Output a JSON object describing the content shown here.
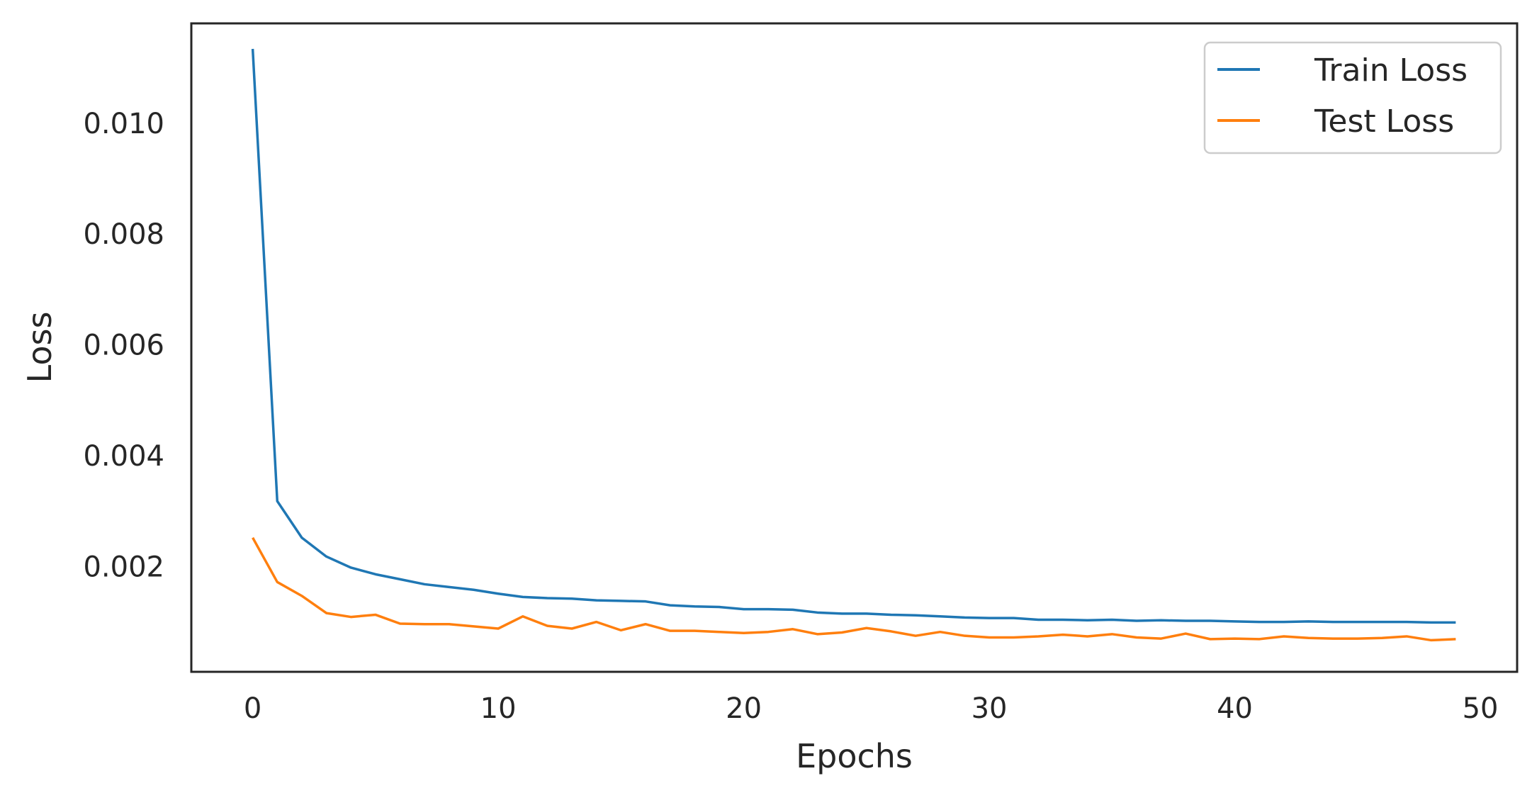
{
  "chart_data": {
    "type": "line",
    "title": "",
    "xlabel": "Epochs",
    "ylabel": "Loss",
    "xlim": [
      -2.5,
      51.5
    ],
    "ylim": [
      0.0001,
      0.0118
    ],
    "x_ticks": [
      0,
      10,
      20,
      30,
      40,
      50
    ],
    "x_tick_labels": [
      "0",
      "10",
      "20",
      "30",
      "40",
      "50"
    ],
    "y_ticks": [
      0.002,
      0.004,
      0.006,
      0.008,
      0.01
    ],
    "y_tick_labels": [
      "0.002",
      "0.004",
      "0.006",
      "0.008",
      "0.010"
    ],
    "grid": false,
    "legend_position": "top-right",
    "x": [
      0,
      1,
      2,
      3,
      4,
      5,
      6,
      7,
      8,
      9,
      10,
      11,
      12,
      13,
      14,
      15,
      16,
      17,
      18,
      19,
      20,
      21,
      22,
      23,
      24,
      25,
      26,
      27,
      28,
      29,
      30,
      31,
      32,
      33,
      34,
      35,
      36,
      37,
      38,
      39,
      40,
      41,
      42,
      43,
      44,
      45,
      46,
      47,
      48,
      49
    ],
    "series": [
      {
        "name": "Train Loss",
        "color": "#1f77b4",
        "values": [
          0.01134,
          0.00318,
          0.00252,
          0.00218,
          0.00198,
          0.00186,
          0.00177,
          0.00168,
          0.00163,
          0.00158,
          0.00151,
          0.00145,
          0.00143,
          0.00142,
          0.00139,
          0.00138,
          0.00137,
          0.0013,
          0.00128,
          0.00127,
          0.00123,
          0.00123,
          0.00122,
          0.00117,
          0.00115,
          0.00115,
          0.00113,
          0.00112,
          0.0011,
          0.00108,
          0.00107,
          0.00107,
          0.00104,
          0.00104,
          0.00103,
          0.00104,
          0.00102,
          0.00103,
          0.00102,
          0.00102,
          0.00101,
          0.001,
          0.001,
          0.00101,
          0.001,
          0.001,
          0.001,
          0.001,
          0.00099,
          0.00099
        ]
      },
      {
        "name": "Test Loss",
        "color": "#ff7f0e",
        "values": [
          0.00252,
          0.00172,
          0.00147,
          0.00116,
          0.00109,
          0.00113,
          0.00097,
          0.00096,
          0.00096,
          0.00092,
          0.00088,
          0.0011,
          0.00093,
          0.00088,
          0.001,
          0.00085,
          0.00096,
          0.00084,
          0.00084,
          0.00082,
          0.0008,
          0.00082,
          0.00087,
          0.00078,
          0.00081,
          0.00089,
          0.00083,
          0.00075,
          0.00082,
          0.00075,
          0.00072,
          0.00072,
          0.00074,
          0.00077,
          0.00074,
          0.00078,
          0.00072,
          0.0007,
          0.00079,
          0.00069,
          0.0007,
          0.00069,
          0.00074,
          0.00071,
          0.0007,
          0.0007,
          0.00071,
          0.00074,
          0.00067,
          0.00069
        ]
      }
    ],
    "legend": [
      "Train Loss",
      "Test Loss"
    ]
  }
}
